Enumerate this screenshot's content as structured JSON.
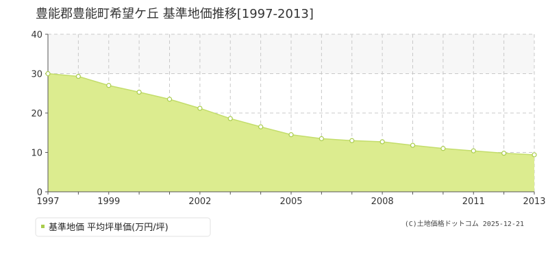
{
  "chart_data": {
    "type": "area",
    "title": "豊能郡豊能町希望ケ丘 基準地価推移[1997-2013]",
    "x": [
      1997,
      1998,
      1999,
      2000,
      2001,
      2002,
      2003,
      2004,
      2005,
      2006,
      2007,
      2008,
      2009,
      2010,
      2011,
      2012,
      2013
    ],
    "xticks": [
      "1997",
      "1999",
      "2002",
      "2005",
      "2008",
      "2011",
      "2013"
    ],
    "xlim": [
      1997,
      2013
    ],
    "ylim": [
      0,
      40
    ],
    "yticks": [
      "0",
      "10",
      "20",
      "30",
      "40"
    ],
    "series": [
      {
        "name": "基準地価 平均坪単価(万円/坪)",
        "values": [
          30.0,
          29.3,
          27.0,
          25.3,
          23.5,
          21.2,
          18.6,
          16.5,
          14.5,
          13.5,
          13.0,
          12.7,
          11.8,
          11.0,
          10.4,
          9.8,
          9.4
        ]
      }
    ],
    "grid": true,
    "legend": "bottom-left",
    "colors": {
      "area_fill": "#dcec8f",
      "line": "#c3dd6b",
      "marker_fill": "#ffffff",
      "marker_stroke": "#a9cc4c",
      "legend_marker": "#a9cc4c",
      "band_fill": "#f7f7f7"
    }
  },
  "credit": "(C)土地価格ドットコム 2025-12-21"
}
